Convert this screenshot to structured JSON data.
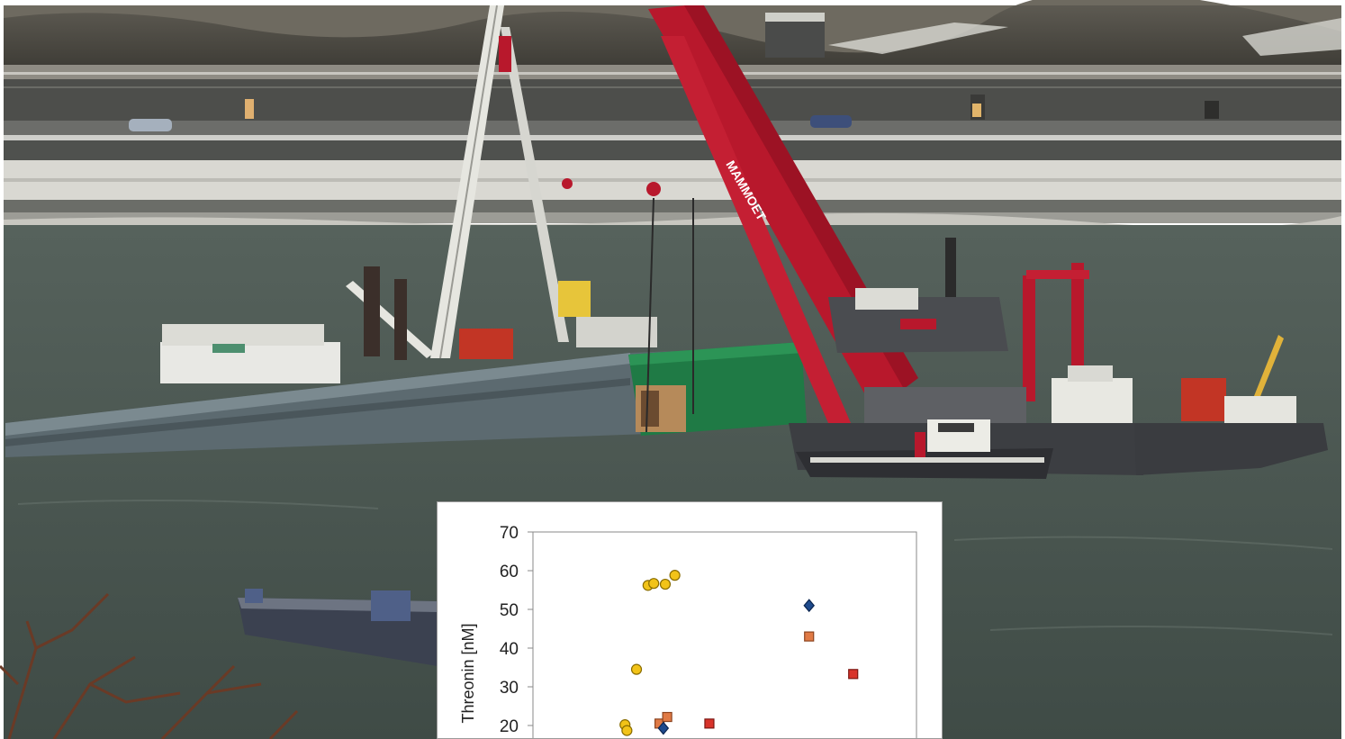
{
  "scene": {
    "description_icon": "river-salvage-photo-icon",
    "crane_brand_text": "MAMMOET",
    "colors": {
      "river": "#4a5650",
      "snow_bank": "#d9d8d2",
      "crane_red": "#b8182c",
      "hull_green": "#1f7a45",
      "hull_grey": "#5c6a70"
    }
  },
  "chart_data": {
    "type": "scatter",
    "ylabel": "Threonin [nM]",
    "ylim": [
      15,
      70
    ],
    "yticks": [
      20,
      30,
      40,
      50,
      60,
      70
    ],
    "xlim": [
      0,
      10
    ],
    "grid": false,
    "series": [
      {
        "marker": "circle",
        "color": "#f2c318",
        "stroke": "#8a6d00",
        "points": [
          {
            "x": 3.0,
            "y": 56.2
          },
          {
            "x": 3.15,
            "y": 56.7
          },
          {
            "x": 3.45,
            "y": 56.5
          },
          {
            "x": 3.7,
            "y": 58.8
          },
          {
            "x": 2.7,
            "y": 34.5
          },
          {
            "x": 2.4,
            "y": 20.2
          },
          {
            "x": 2.45,
            "y": 18.7
          }
        ]
      },
      {
        "marker": "square",
        "color": "#e07a45",
        "stroke": "#8c4420",
        "points": [
          {
            "x": 3.3,
            "y": 20.5
          },
          {
            "x": 3.5,
            "y": 22.2
          },
          {
            "x": 7.2,
            "y": 43.0
          }
        ]
      },
      {
        "marker": "square",
        "color": "#d8332a",
        "stroke": "#7c1712",
        "points": [
          {
            "x": 4.6,
            "y": 20.5
          },
          {
            "x": 8.35,
            "y": 33.3
          }
        ]
      },
      {
        "marker": "diamond",
        "color": "#1e4a8c",
        "stroke": "#0c2650",
        "points": [
          {
            "x": 3.4,
            "y": 19.3
          },
          {
            "x": 7.2,
            "y": 51.0
          }
        ]
      }
    ]
  }
}
